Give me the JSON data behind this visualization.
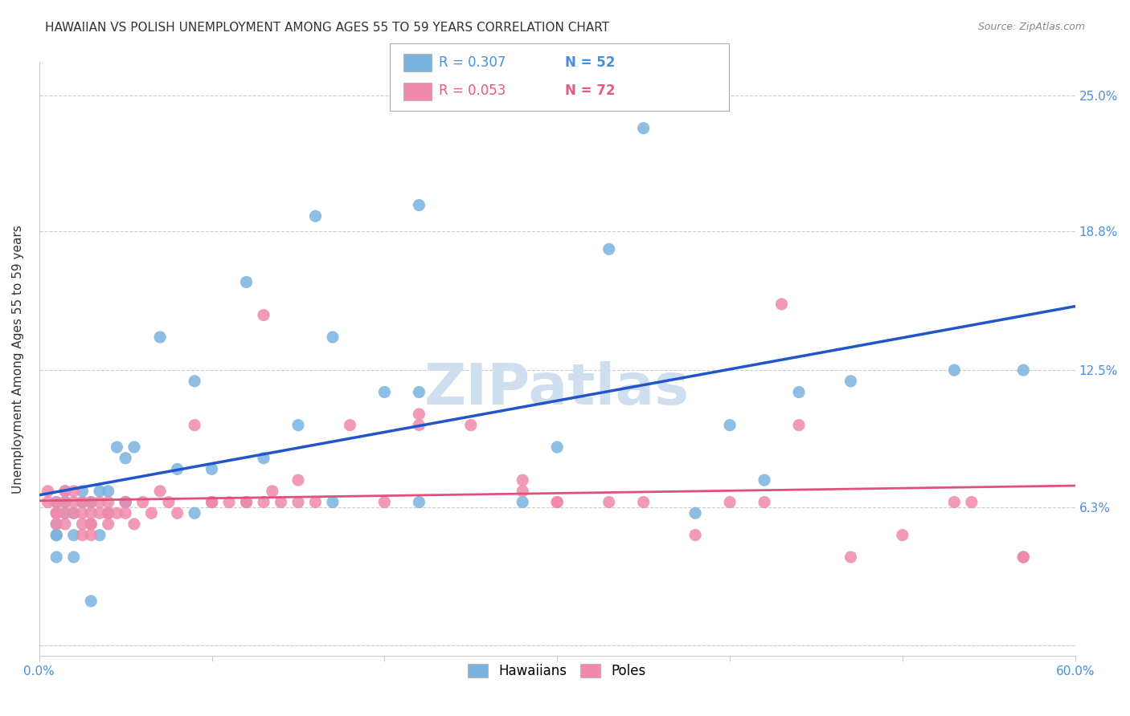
{
  "title": "HAWAIIAN VS POLISH UNEMPLOYMENT AMONG AGES 55 TO 59 YEARS CORRELATION CHART",
  "source_text": "Source: ZipAtlas.com",
  "xlabel": "",
  "ylabel": "Unemployment Among Ages 55 to 59 years",
  "xlim": [
    0.0,
    0.6
  ],
  "ylim": [
    -0.005,
    0.265
  ],
  "xticks": [
    0.0,
    0.1,
    0.2,
    0.3,
    0.4,
    0.5,
    0.6
  ],
  "xticklabels": [
    "0.0%",
    "",
    "",
    "",
    "",
    "",
    "60.0%"
  ],
  "ytick_positions": [
    0.0,
    0.0625,
    0.125,
    0.188,
    0.25
  ],
  "ytick_labels": [
    "",
    "6.3%",
    "12.5%",
    "18.8%",
    "25.0%"
  ],
  "ytick_color": "#4a90d9",
  "xtick_color": "#4a90d9",
  "grid_color": "#cccccc",
  "background_color": "#ffffff",
  "title_fontsize": 11,
  "legend_r1": "R = 0.307",
  "legend_n1": "N = 52",
  "legend_r2": "R = 0.053",
  "legend_n2": "N = 72",
  "legend_r_color": "#4a90d9",
  "legend_n_color": "#e05c8a",
  "watermark_text": "ZIPatlas",
  "watermark_color": "#d0dff0",
  "hawaiian_color": "#7ab3e0",
  "poles_color": "#f08aaa",
  "trendline_hawaiian_color": "#2255cc",
  "trendline_poles_color": "#e0507a",
  "hawaiian_x": [
    0.01,
    0.01,
    0.01,
    0.01,
    0.01,
    0.01,
    0.015,
    0.015,
    0.015,
    0.02,
    0.02,
    0.02,
    0.025,
    0.025,
    0.03,
    0.03,
    0.035,
    0.035,
    0.04,
    0.04,
    0.045,
    0.05,
    0.05,
    0.05,
    0.055,
    0.07,
    0.08,
    0.09,
    0.09,
    0.1,
    0.1,
    0.12,
    0.13,
    0.15,
    0.16,
    0.17,
    0.17,
    0.2,
    0.22,
    0.22,
    0.22,
    0.28,
    0.3,
    0.33,
    0.35,
    0.38,
    0.4,
    0.42,
    0.44,
    0.47,
    0.53,
    0.57
  ],
  "hawaiian_y": [
    0.05,
    0.06,
    0.065,
    0.055,
    0.04,
    0.05,
    0.06,
    0.065,
    0.07,
    0.06,
    0.05,
    0.04,
    0.065,
    0.07,
    0.065,
    0.02,
    0.07,
    0.05,
    0.06,
    0.07,
    0.09,
    0.065,
    0.085,
    0.065,
    0.09,
    0.14,
    0.08,
    0.06,
    0.12,
    0.08,
    0.065,
    0.165,
    0.085,
    0.1,
    0.195,
    0.14,
    0.065,
    0.115,
    0.115,
    0.2,
    0.065,
    0.065,
    0.09,
    0.18,
    0.235,
    0.06,
    0.1,
    0.075,
    0.115,
    0.12,
    0.125,
    0.125
  ],
  "poles_x": [
    0.005,
    0.005,
    0.01,
    0.01,
    0.01,
    0.01,
    0.015,
    0.015,
    0.015,
    0.015,
    0.02,
    0.02,
    0.02,
    0.025,
    0.025,
    0.025,
    0.025,
    0.03,
    0.03,
    0.03,
    0.03,
    0.03,
    0.035,
    0.035,
    0.04,
    0.04,
    0.04,
    0.04,
    0.045,
    0.05,
    0.05,
    0.055,
    0.06,
    0.065,
    0.07,
    0.075,
    0.08,
    0.09,
    0.1,
    0.1,
    0.11,
    0.12,
    0.12,
    0.13,
    0.13,
    0.135,
    0.14,
    0.15,
    0.15,
    0.16,
    0.18,
    0.2,
    0.22,
    0.22,
    0.25,
    0.28,
    0.28,
    0.3,
    0.3,
    0.33,
    0.35,
    0.38,
    0.4,
    0.42,
    0.43,
    0.44,
    0.47,
    0.5,
    0.53,
    0.54,
    0.57,
    0.57
  ],
  "poles_y": [
    0.065,
    0.07,
    0.06,
    0.065,
    0.055,
    0.06,
    0.065,
    0.07,
    0.055,
    0.06,
    0.07,
    0.065,
    0.06,
    0.065,
    0.06,
    0.055,
    0.05,
    0.065,
    0.06,
    0.055,
    0.055,
    0.05,
    0.06,
    0.065,
    0.06,
    0.055,
    0.065,
    0.06,
    0.06,
    0.065,
    0.06,
    0.055,
    0.065,
    0.06,
    0.07,
    0.065,
    0.06,
    0.1,
    0.065,
    0.065,
    0.065,
    0.065,
    0.065,
    0.15,
    0.065,
    0.07,
    0.065,
    0.075,
    0.065,
    0.065,
    0.1,
    0.065,
    0.105,
    0.1,
    0.1,
    0.07,
    0.075,
    0.065,
    0.065,
    0.065,
    0.065,
    0.05,
    0.065,
    0.065,
    0.155,
    0.1,
    0.04,
    0.05,
    0.065,
    0.065,
    0.04,
    0.04
  ]
}
